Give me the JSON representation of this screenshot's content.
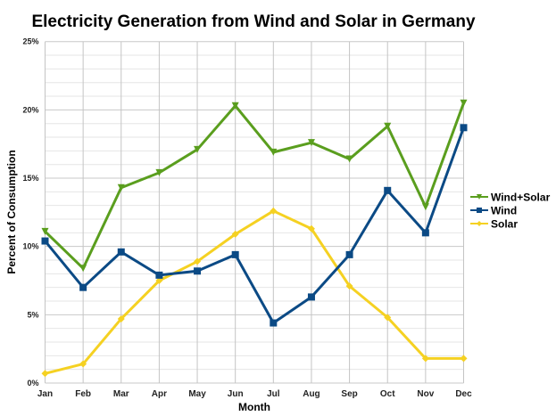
{
  "chart_data": {
    "type": "line",
    "title": "Electricity Generation from Wind and Solar in Germany",
    "xlabel": "Month",
    "ylabel": "Percent of Consumption",
    "categories": [
      "Jan",
      "Feb",
      "Mar",
      "Apr",
      "May",
      "Jun",
      "Jul",
      "Aug",
      "Sep",
      "Oct",
      "Nov",
      "Dec"
    ],
    "ylim": [
      0,
      25
    ],
    "yticks": [
      0,
      5,
      10,
      15,
      20,
      25
    ],
    "ytick_labels": [
      "0%",
      "5%",
      "10%",
      "15%",
      "20%",
      "25%"
    ],
    "grid": true,
    "legend_position": "right",
    "series": [
      {
        "name": "Wind+Solar",
        "color": "#5a9e1e",
        "marker": "triangle-down",
        "values": [
          11.1,
          8.4,
          14.3,
          15.4,
          17.1,
          20.3,
          16.9,
          17.6,
          16.4,
          18.8,
          12.9,
          20.5
        ]
      },
      {
        "name": "Wind",
        "color": "#0b4a85",
        "marker": "square",
        "values": [
          10.4,
          7.0,
          9.6,
          7.9,
          8.2,
          9.4,
          4.4,
          6.3,
          9.4,
          14.1,
          11.0,
          18.7
        ]
      },
      {
        "name": "Solar",
        "color": "#f5d122",
        "marker": "diamond",
        "values": [
          0.7,
          1.4,
          4.7,
          7.5,
          8.9,
          10.9,
          12.6,
          11.3,
          7.1,
          4.8,
          1.8,
          1.8
        ]
      }
    ]
  }
}
